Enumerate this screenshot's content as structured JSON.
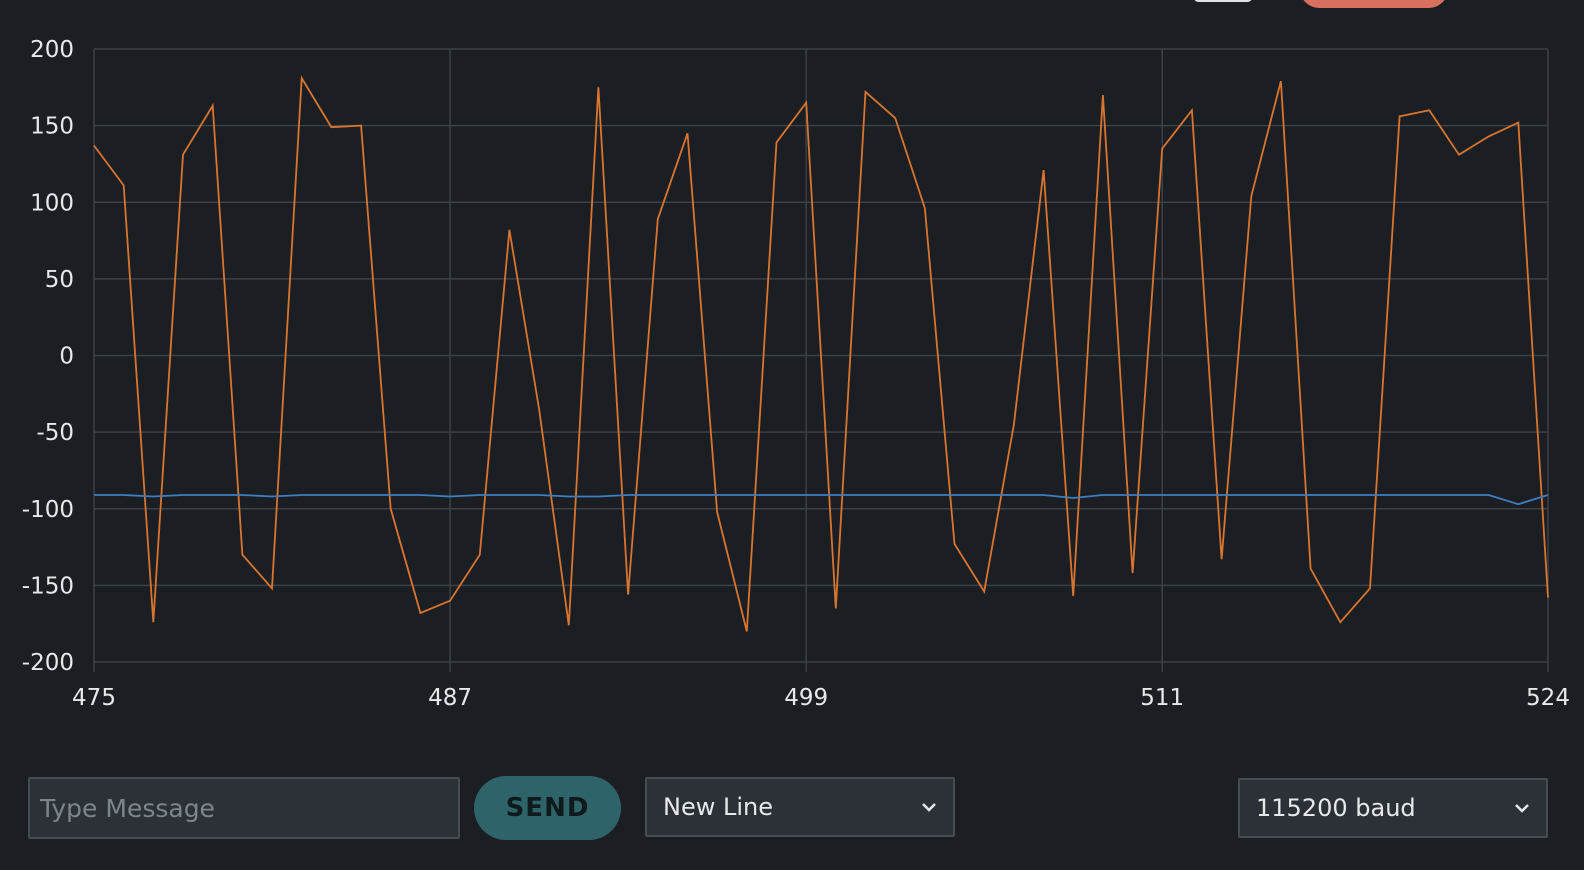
{
  "chart_data": {
    "type": "line",
    "x_ticks": [
      "475",
      "487",
      "499",
      "511",
      "524"
    ],
    "y_ticks": [
      "200",
      "150",
      "100",
      "50",
      "0",
      "-50",
      "-100",
      "-150",
      "-200"
    ],
    "xlim": [
      475,
      524
    ],
    "ylim": [
      -200,
      200
    ],
    "grid": true,
    "series": [
      {
        "color": "#d9752f",
        "x": [
          475,
          476,
          477,
          478,
          479,
          480,
          481,
          482,
          483,
          484,
          485,
          486,
          487,
          488,
          489,
          490,
          491,
          492,
          493,
          494,
          495,
          496,
          497,
          498,
          499,
          500,
          501,
          502,
          503,
          504,
          505,
          506,
          507,
          508,
          509,
          510,
          511,
          512,
          513,
          514,
          515,
          516,
          517,
          518,
          519,
          520,
          521,
          522,
          523,
          524
        ],
        "values": [
          137,
          111,
          -174,
          131,
          163,
          -130,
          -152,
          181,
          149,
          150,
          -100,
          -168,
          -160,
          -130,
          82,
          -35,
          -176,
          175,
          -156,
          89,
          145,
          -102,
          -180,
          139,
          165,
          -165,
          172,
          155,
          96,
          -123,
          -154,
          -45,
          121,
          -157,
          170,
          -142,
          135,
          160,
          -133,
          104,
          179,
          -139,
          -174,
          -152,
          156,
          160,
          131,
          143,
          152,
          -158
        ]
      },
      {
        "color": "#3f7fc1",
        "x": [
          475,
          476,
          477,
          478,
          479,
          480,
          481,
          482,
          483,
          484,
          485,
          486,
          487,
          488,
          489,
          490,
          491,
          492,
          493,
          494,
          495,
          496,
          497,
          498,
          499,
          500,
          501,
          502,
          503,
          504,
          505,
          506,
          507,
          508,
          509,
          510,
          511,
          512,
          513,
          514,
          515,
          516,
          517,
          518,
          519,
          520,
          521,
          522,
          523,
          524
        ],
        "values": [
          -91,
          -91,
          -92,
          -91,
          -91,
          -91,
          -92,
          -91,
          -91,
          -91,
          -91,
          -91,
          -92,
          -91,
          -91,
          -91,
          -92,
          -92,
          -91,
          -91,
          -91,
          -91,
          -91,
          -91,
          -91,
          -91,
          -91,
          -91,
          -91,
          -91,
          -91,
          -91,
          -91,
          -93,
          -91,
          -91,
          -91,
          -91,
          -91,
          -91,
          -91,
          -91,
          -91,
          -91,
          -91,
          -91,
          -91,
          -91,
          -97,
          -91
        ]
      }
    ]
  },
  "controls": {
    "message_placeholder": "Type Message",
    "message_value": "",
    "send_label": "SEND",
    "line_ending": "New Line",
    "baud_rate": "115200 baud"
  },
  "colors": {
    "background": "#1b1f23",
    "grid": "#3a4147",
    "series_orange": "#d9752f",
    "series_blue": "#3f7fc1",
    "send_button": "#2e6469",
    "top_button": "#d9705f"
  }
}
